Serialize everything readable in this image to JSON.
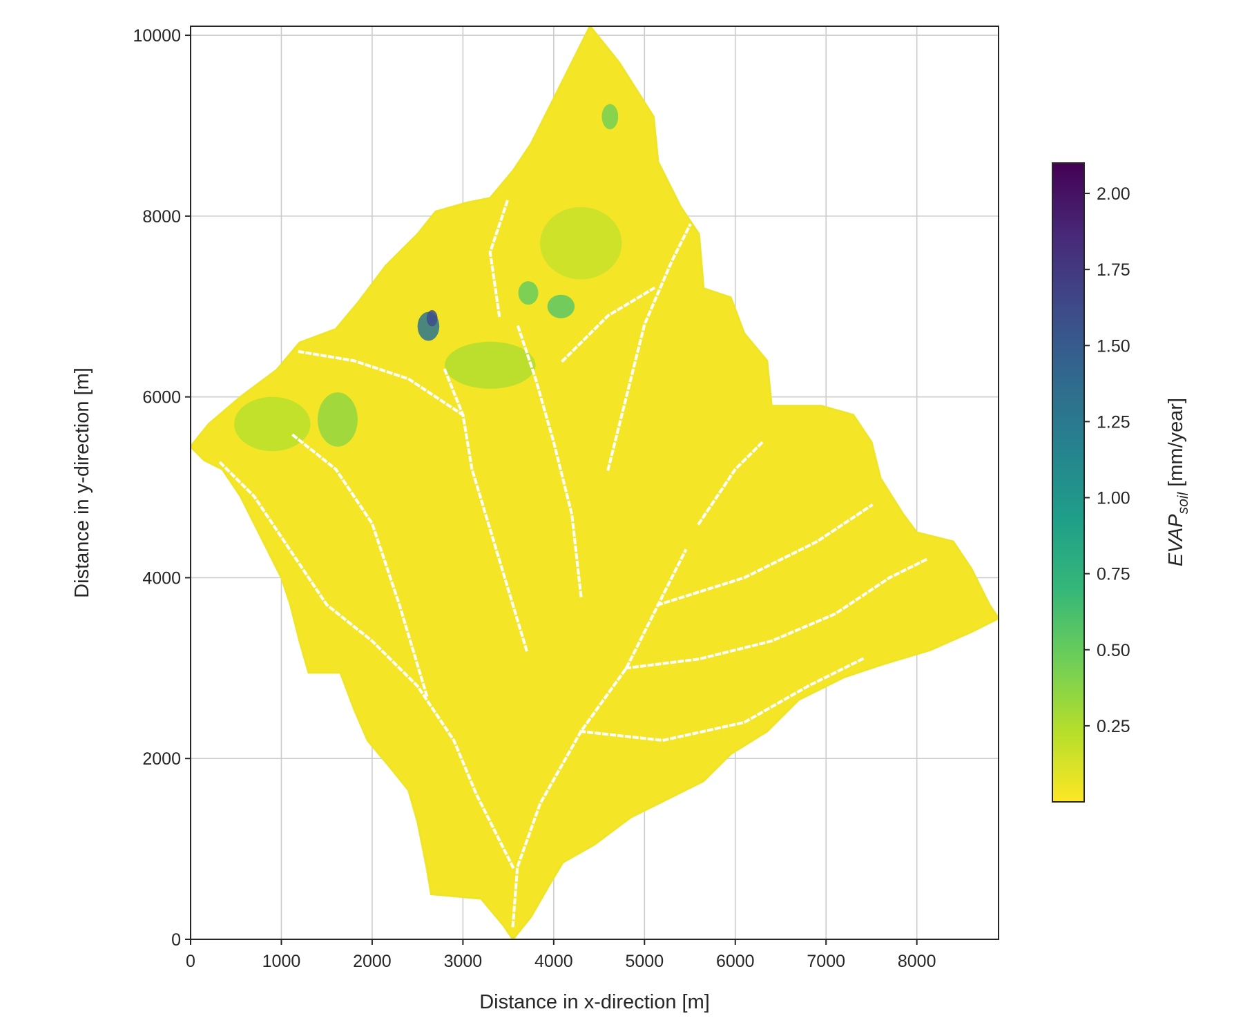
{
  "chart_data": {
    "type": "heatmap",
    "xlabel": "Distance in x-direction [m]",
    "ylabel": "Distance in y-direction [m]",
    "xlim": [
      0,
      8900
    ],
    "ylim": [
      0,
      10100
    ],
    "xticks": [
      0,
      1000,
      2000,
      3000,
      4000,
      5000,
      6000,
      7000,
      8000
    ],
    "yticks": [
      0,
      2000,
      4000,
      6000,
      8000,
      10000
    ],
    "grid": true,
    "colorbar": {
      "label_main": "EVAP",
      "label_sub": "soil",
      "label_units": " [mm/year]",
      "colormap": "viridis_r",
      "range": [
        0.0,
        2.1
      ],
      "ticks": [
        "0.25",
        "0.50",
        "0.75",
        "1.00",
        "1.25",
        "1.50",
        "1.75",
        "2.00"
      ],
      "colors": [
        "#fde725",
        "#b5de2b",
        "#6ece58",
        "#35b779",
        "#1f9e89",
        "#26828e",
        "#31688e",
        "#3e4989",
        "#482878",
        "#440154"
      ]
    },
    "catchment_outline": [
      [
        4400,
        10100
      ],
      [
        4720,
        9700
      ],
      [
        5100,
        9100
      ],
      [
        5150,
        8600
      ],
      [
        5400,
        8100
      ],
      [
        5600,
        7800
      ],
      [
        5650,
        7200
      ],
      [
        5950,
        7100
      ],
      [
        6100,
        6700
      ],
      [
        6350,
        6400
      ],
      [
        6400,
        5900
      ],
      [
        6950,
        5900
      ],
      [
        7300,
        5800
      ],
      [
        7500,
        5500
      ],
      [
        7600,
        5100
      ],
      [
        7850,
        4700
      ],
      [
        8000,
        4500
      ],
      [
        8400,
        4400
      ],
      [
        8600,
        4100
      ],
      [
        8800,
        3700
      ],
      [
        8900,
        3550
      ],
      [
        8600,
        3400
      ],
      [
        8150,
        3200
      ],
      [
        7650,
        3050
      ],
      [
        7200,
        2900
      ],
      [
        6700,
        2650
      ],
      [
        6350,
        2300
      ],
      [
        5950,
        2050
      ],
      [
        5650,
        1750
      ],
      [
        5250,
        1550
      ],
      [
        4850,
        1350
      ],
      [
        4450,
        1050
      ],
      [
        4100,
        850
      ],
      [
        3950,
        600
      ],
      [
        3750,
        250
      ],
      [
        3550,
        0
      ],
      [
        3450,
        150
      ],
      [
        3200,
        450
      ],
      [
        2650,
        500
      ],
      [
        2600,
        800
      ],
      [
        2500,
        1300
      ],
      [
        2400,
        1650
      ],
      [
        2200,
        1900
      ],
      [
        1950,
        2200
      ],
      [
        1800,
        2550
      ],
      [
        1650,
        2950
      ],
      [
        1300,
        2950
      ],
      [
        1200,
        3300
      ],
      [
        1100,
        3700
      ],
      [
        1000,
        4000
      ],
      [
        800,
        4400
      ],
      [
        550,
        4900
      ],
      [
        350,
        5200
      ],
      [
        150,
        5300
      ],
      [
        0,
        5450
      ],
      [
        200,
        5700
      ],
      [
        550,
        6000
      ],
      [
        950,
        6300
      ],
      [
        1200,
        6600
      ],
      [
        1600,
        6750
      ],
      [
        1850,
        7050
      ],
      [
        2150,
        7450
      ],
      [
        2500,
        7800
      ],
      [
        2700,
        8050
      ],
      [
        3050,
        8150
      ],
      [
        3300,
        8200
      ],
      [
        3550,
        8500
      ],
      [
        3750,
        8800
      ],
      [
        3950,
        9200
      ],
      [
        4150,
        9600
      ]
    ],
    "high_evap_patches": [
      {
        "x": 2620,
        "y": 6780,
        "rx": 120,
        "ry": 160,
        "value": 1.3
      },
      {
        "x": 2660,
        "y": 6870,
        "rx": 60,
        "ry": 90,
        "value": 1.6
      },
      {
        "x": 4080,
        "y": 7000,
        "rx": 150,
        "ry": 130,
        "value": 0.55
      },
      {
        "x": 3720,
        "y": 7150,
        "rx": 110,
        "ry": 130,
        "value": 0.5
      },
      {
        "x": 4620,
        "y": 9100,
        "rx": 90,
        "ry": 140,
        "value": 0.45
      },
      {
        "x": 1620,
        "y": 5750,
        "rx": 220,
        "ry": 300,
        "value": 0.35
      },
      {
        "x": 900,
        "y": 5700,
        "rx": 420,
        "ry": 300,
        "value": 0.22
      },
      {
        "x": 3300,
        "y": 6350,
        "rx": 500,
        "ry": 260,
        "value": 0.25
      },
      {
        "x": 4300,
        "y": 7700,
        "rx": 450,
        "ry": 400,
        "value": 0.18
      }
    ],
    "channel_network": [
      [
        [
          3550,
          150
        ],
        [
          3600,
          800
        ],
        [
          3850,
          1500
        ],
        [
          4300,
          2300
        ],
        [
          4800,
          3000
        ],
        [
          5150,
          3700
        ],
        [
          5450,
          4300
        ]
      ],
      [
        [
          3550,
          800
        ],
        [
          3150,
          1600
        ],
        [
          2900,
          2200
        ],
        [
          2500,
          2800
        ],
        [
          2000,
          3300
        ],
        [
          1500,
          3700
        ],
        [
          1100,
          4300
        ],
        [
          700,
          4900
        ],
        [
          300,
          5300
        ]
      ],
      [
        [
          4300,
          2300
        ],
        [
          5200,
          2200
        ],
        [
          6100,
          2400
        ],
        [
          6800,
          2800
        ],
        [
          7400,
          3100
        ]
      ],
      [
        [
          4800,
          3000
        ],
        [
          5600,
          3100
        ],
        [
          6400,
          3300
        ],
        [
          7100,
          3600
        ],
        [
          7700,
          4000
        ],
        [
          8100,
          4200
        ]
      ],
      [
        [
          5150,
          3700
        ],
        [
          6100,
          4000
        ],
        [
          6900,
          4400
        ],
        [
          7500,
          4800
        ]
      ],
      [
        [
          3700,
          3200
        ],
        [
          3400,
          4200
        ],
        [
          3100,
          5200
        ],
        [
          3000,
          5800
        ],
        [
          2800,
          6300
        ]
      ],
      [
        [
          4300,
          3800
        ],
        [
          4200,
          4700
        ],
        [
          4000,
          5500
        ],
        [
          3800,
          6200
        ],
        [
          3600,
          6800
        ]
      ],
      [
        [
          2600,
          2700
        ],
        [
          2300,
          3700
        ],
        [
          2000,
          4600
        ],
        [
          1600,
          5200
        ],
        [
          1100,
          5600
        ]
      ],
      [
        [
          4600,
          5200
        ],
        [
          4800,
          6000
        ],
        [
          5000,
          6800
        ],
        [
          5300,
          7500
        ],
        [
          5500,
          7900
        ]
      ],
      [
        [
          3000,
          5800
        ],
        [
          2400,
          6200
        ],
        [
          1800,
          6400
        ],
        [
          1200,
          6500
        ]
      ],
      [
        [
          5600,
          4600
        ],
        [
          6000,
          5200
        ],
        [
          6300,
          5500
        ]
      ],
      [
        [
          4100,
          6400
        ],
        [
          4600,
          6900
        ],
        [
          5100,
          7200
        ]
      ],
      [
        [
          3400,
          6900
        ],
        [
          3300,
          7600
        ],
        [
          3500,
          8200
        ]
      ]
    ]
  }
}
